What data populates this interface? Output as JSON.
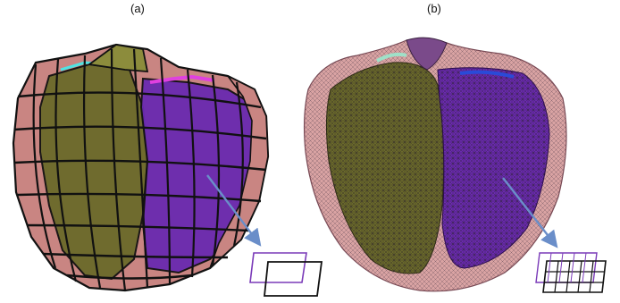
{
  "panels": [
    {
      "label": "(a)"
    },
    {
      "label": "(b)"
    }
  ],
  "colors": {
    "epicardium": "#c98582",
    "left_ventricle": "#6b6a2a",
    "right_ventricle": "#6a2ab0",
    "mesh_coarse": "#111111",
    "mesh_fine": "#3a2c3a",
    "arrow": "#6a8ec9",
    "valve_cyan": "#4fe3e3",
    "valve_magenta": "#e040e0"
  }
}
